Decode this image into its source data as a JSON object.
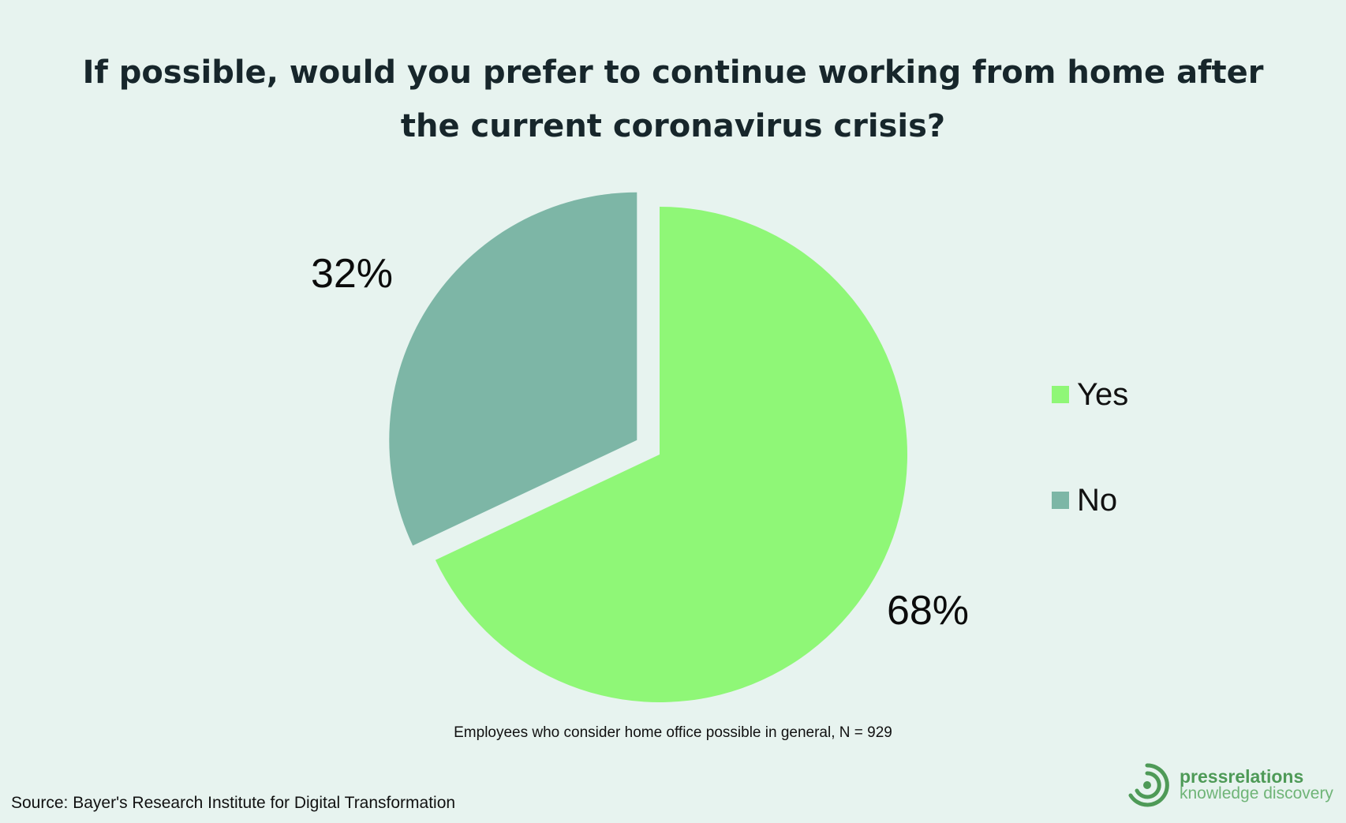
{
  "title": {
    "line1": "If possible, would you prefer to continue working from home after",
    "line2": "the current coronavirus crisis?"
  },
  "chart_data": {
    "type": "pie",
    "slices": [
      {
        "label": "Yes",
        "value": 68,
        "display": "68%",
        "color": "#8ff777"
      },
      {
        "label": "No",
        "value": 32,
        "display": "32%",
        "color": "#7db6a6"
      }
    ],
    "start_angle": "12 o'clock, clockwise",
    "exploded": true,
    "legend_position": "right"
  },
  "legend": {
    "items": [
      {
        "label": "Yes",
        "color": "#8ff777"
      },
      {
        "label": "No",
        "color": "#7db6a6"
      }
    ]
  },
  "note": "Employees who consider home office possible in general, N = 929",
  "source": "Source: Bayer's Research Institute for Digital Transformation",
  "logo": {
    "name": "pressrelations",
    "tagline": "knowledge discovery"
  },
  "colors": {
    "background": "#e7f3ef",
    "brand": "#4e9a57"
  }
}
